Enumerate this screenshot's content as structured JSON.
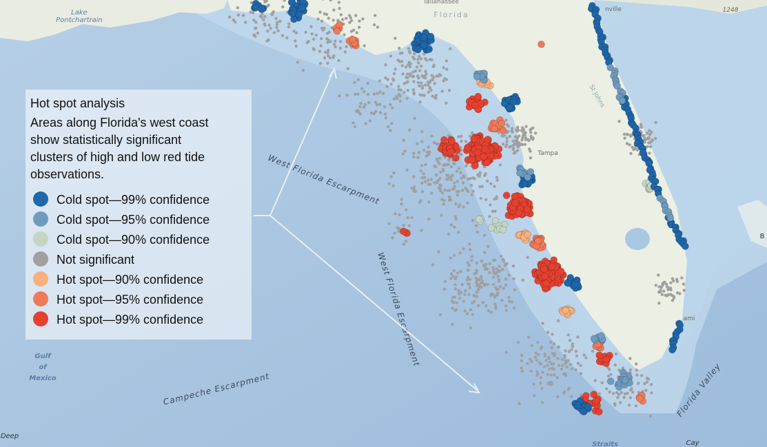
{
  "legend": {
    "title": "Hot spot analysis",
    "description": [
      "Areas along Florida's west coast",
      "show statistically significant",
      "clusters of high and low red tide",
      "observations."
    ],
    "items": [
      {
        "label": "Cold spot—99% confidence",
        "color": "#1f66aa"
      },
      {
        "label": "Cold spot—95% confidence",
        "color": "#6f9bbf"
      },
      {
        "label": "Cold spot—90% confidence",
        "color": "#c3d6c3"
      },
      {
        "label": "Not significant",
        "color": "#a0a0a0"
      },
      {
        "label": "Hot spot—90% confidence",
        "color": "#f8b07e"
      },
      {
        "label": "Hot spot—95% confidence",
        "color": "#f07a58"
      },
      {
        "label": "Hot spot—99% confidence",
        "color": "#e6412f"
      }
    ]
  },
  "map_labels": [
    "Lake",
    "Pontchartrain",
    "Tallahassee",
    "Florida",
    "1248",
    "West Florida Escarpment",
    "West Florida Escarpment",
    "Gulf",
    "of",
    "Mexico",
    "Campeche Escarpment",
    "Deep",
    "Florida Valley",
    "Straits",
    "Cay",
    "Tampa",
    "St Johns",
    "nville",
    "ami",
    "B"
  ]
}
